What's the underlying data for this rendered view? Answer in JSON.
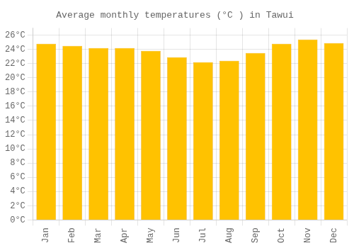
{
  "chart_data": {
    "type": "bar",
    "title": "Average monthly temperatures (°C ) in Tawui",
    "categories": [
      "Jan",
      "Feb",
      "Mar",
      "Apr",
      "May",
      "Jun",
      "Jul",
      "Aug",
      "Sep",
      "Oct",
      "Nov",
      "Dec"
    ],
    "values": [
      24.8,
      24.5,
      24.2,
      24.2,
      23.8,
      22.9,
      22.2,
      22.4,
      23.5,
      24.8,
      25.4,
      24.9
    ],
    "color": "#FFC200",
    "ylim": [
      0,
      27
    ],
    "yticks": [
      {
        "value": 0,
        "label": "0°C"
      },
      {
        "value": 2,
        "label": "2°C"
      },
      {
        "value": 4,
        "label": "4°C"
      },
      {
        "value": 6,
        "label": "6°C"
      },
      {
        "value": 8,
        "label": "8°C"
      },
      {
        "value": 10,
        "label": "10°C"
      },
      {
        "value": 12,
        "label": "12°C"
      },
      {
        "value": 14,
        "label": "14°C"
      },
      {
        "value": 16,
        "label": "16°C"
      },
      {
        "value": 18,
        "label": "18°C"
      },
      {
        "value": 20,
        "label": "20°C"
      },
      {
        "value": 22,
        "label": "22°C"
      },
      {
        "value": 24,
        "label": "24°C"
      },
      {
        "value": 26,
        "label": "26°C"
      }
    ],
    "grid": true
  }
}
